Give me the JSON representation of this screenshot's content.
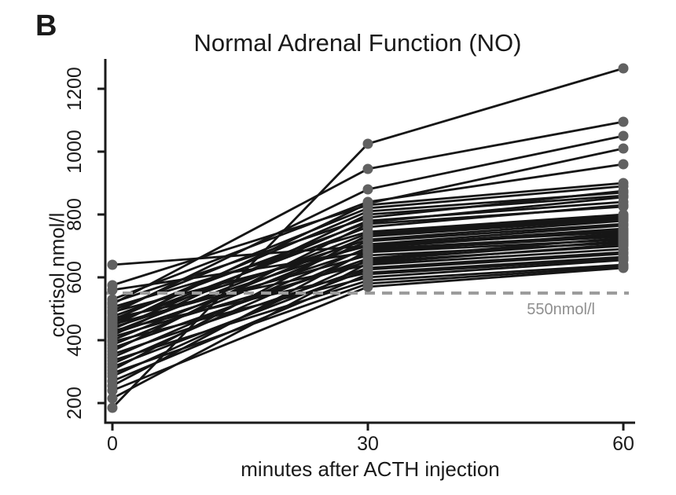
{
  "figure": {
    "panel_label": "B",
    "title": "Normal Adrenal Function (NO)",
    "xlabel": "minutes after ACTH injection",
    "ylabel": "cortisol nmol/l",
    "reference_label": "550nmol/l"
  },
  "chart_data": {
    "type": "line",
    "title": "Normal Adrenal Function (NO)",
    "xlabel": "minutes after ACTH injection",
    "ylabel": "cortisol nmol/l",
    "x": [
      0,
      30,
      60
    ],
    "x_tick_labels": [
      "0",
      "30",
      "60"
    ],
    "y_ticks": [
      200,
      400,
      600,
      800,
      1000,
      1200
    ],
    "ylim": [
      140,
      1300
    ],
    "grid": false,
    "legend": "none",
    "marker": "circle",
    "reference_line": {
      "value": 550,
      "label": "550nmol/l",
      "style": "dashed"
    },
    "colors": {
      "line": "#161616",
      "marker": "#616161",
      "reference_line": "#9c9c9c",
      "reference_label": "#8f8f8f",
      "axis": "#1a1a1a",
      "background": "#ffffff"
    },
    "series": [
      [
        640,
        700,
        755
      ],
      [
        575,
        830,
        900
      ],
      [
        560,
        680,
        720
      ],
      [
        530,
        840,
        960
      ],
      [
        520,
        790,
        875
      ],
      [
        515,
        945,
        1095
      ],
      [
        505,
        745,
        800
      ],
      [
        495,
        820,
        890
      ],
      [
        490,
        700,
        745
      ],
      [
        485,
        880,
        1050
      ],
      [
        475,
        775,
        855
      ],
      [
        470,
        640,
        690
      ],
      [
        465,
        810,
        870
      ],
      [
        460,
        720,
        780
      ],
      [
        455,
        760,
        830
      ],
      [
        450,
        670,
        710
      ],
      [
        445,
        835,
        1010
      ],
      [
        440,
        705,
        765
      ],
      [
        435,
        780,
        840
      ],
      [
        430,
        615,
        665
      ],
      [
        425,
        740,
        795
      ],
      [
        420,
        690,
        735
      ],
      [
        415,
        800,
        860
      ],
      [
        410,
        650,
        700
      ],
      [
        400,
        730,
        785
      ],
      [
        395,
        600,
        655
      ],
      [
        385,
        715,
        770
      ],
      [
        375,
        660,
        725
      ],
      [
        365,
        770,
        825
      ],
      [
        355,
        630,
        680
      ],
      [
        345,
        695,
        750
      ],
      [
        335,
        590,
        640
      ],
      [
        325,
        680,
        740
      ],
      [
        315,
        625,
        675
      ],
      [
        305,
        735,
        790
      ],
      [
        295,
        580,
        635
      ],
      [
        285,
        655,
        715
      ],
      [
        270,
        610,
        660
      ],
      [
        255,
        685,
        730
      ],
      [
        240,
        570,
        630
      ],
      [
        215,
        645,
        705
      ],
      [
        185,
        1025,
        1265
      ]
    ]
  }
}
